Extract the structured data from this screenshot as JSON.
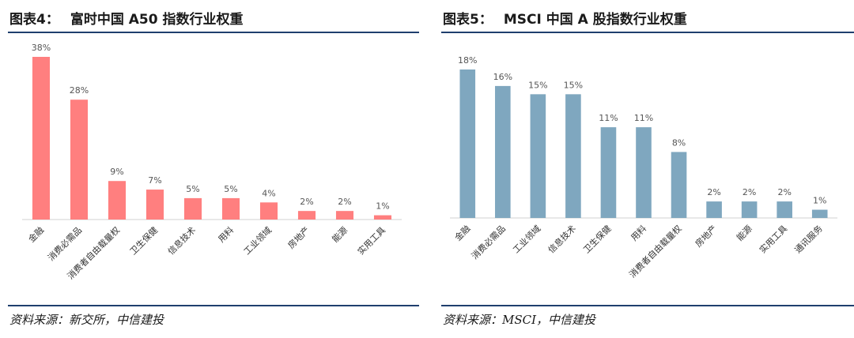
{
  "left": {
    "figure_label": "图表4：",
    "figure_title": "富时中国 A50 指数行业权重",
    "source": "资料来源：新交所，中信建投",
    "bar_color": "#ff7f7f"
  },
  "right": {
    "figure_label": "图表5：",
    "figure_title": "MSCI 中国 A 股指数行业权重",
    "source": "资料来源：MSCI，中信建投",
    "bar_color": "#7fa7bf"
  },
  "chart_data": [
    {
      "type": "bar",
      "title": "富时中国 A50 指数行业权重",
      "categories": [
        "金融",
        "消费必需品",
        "消费者自由载量权",
        "卫生保健",
        "信息技术",
        "用料",
        "工业领域",
        "房地产",
        "能源",
        "实用工具"
      ],
      "values": [
        38,
        28,
        9,
        7,
        5,
        5,
        4,
        2,
        2,
        1
      ],
      "value_labels": [
        "38%",
        "28%",
        "9%",
        "7%",
        "5%",
        "5%",
        "4%",
        "2%",
        "2%",
        "1%"
      ],
      "ylim": [
        0,
        38
      ],
      "grid": false,
      "color": "#ff7f7f"
    },
    {
      "type": "bar",
      "title": "MSCI 中国 A 股指数行业权重",
      "categories": [
        "金融",
        "消费必需品",
        "工业领域",
        "信息技术",
        "卫生保健",
        "用料",
        "消费者自由载量权",
        "房地产",
        "能源",
        "实用工具",
        "通讯服务"
      ],
      "values": [
        18,
        16,
        15,
        15,
        11,
        11,
        8,
        2,
        2,
        2,
        1
      ],
      "value_labels": [
        "18%",
        "16%",
        "15%",
        "15%",
        "11%",
        "11%",
        "8%",
        "2%",
        "2%",
        "2%",
        "1%"
      ],
      "ylim": [
        0,
        18
      ],
      "grid": false,
      "color": "#7fa7bf"
    }
  ]
}
